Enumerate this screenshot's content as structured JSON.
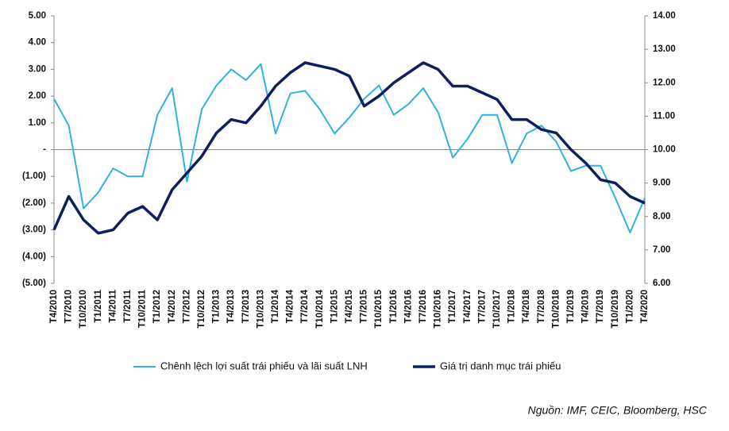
{
  "chart_data": {
    "type": "line",
    "categories": [
      "T4/2010",
      "T7/2010",
      "T10/2010",
      "T1/2011",
      "T4/2011",
      "T7/2011",
      "T10/2011",
      "T1/2012",
      "T4/2012",
      "T7/2012",
      "T10/2012",
      "T1/2013",
      "T4/2013",
      "T7/2013",
      "T10/2013",
      "T1/2014",
      "T4/2014",
      "T7/2014",
      "T10/2014",
      "T1/2015",
      "T4/2015",
      "T7/2015",
      "T10/2015",
      "T1/2016",
      "T4/2016",
      "T7/2016",
      "T10/2016",
      "T1/2017",
      "T4/2017",
      "T7/2017",
      "T10/2017",
      "T1/2018",
      "T4/2018",
      "T7/2018",
      "T10/2018",
      "T1/2019",
      "T4/2019",
      "T7/2019",
      "T10/2019",
      "T1/2020",
      "T4/2020"
    ],
    "series": [
      {
        "name": "Chênh lệch lợi suất trái phiếu và lãi suất LNH",
        "color": "#2fb1e8",
        "values": [
          1.9,
          0.9,
          -2.2,
          -1.6,
          -0.7,
          -1.0,
          -1.0,
          1.3,
          2.3,
          -1.2,
          1.5,
          2.4,
          3.0,
          2.6,
          3.2,
          0.6,
          2.1,
          2.2,
          1.5,
          0.6,
          1.2,
          1.9,
          2.4,
          1.3,
          1.7,
          2.3,
          1.4,
          -0.3,
          0.4,
          1.3,
          1.3,
          -0.5,
          0.6,
          0.9,
          0.3,
          -0.8,
          -0.6,
          -0.6,
          -1.8,
          -3.1,
          -1.8
        ]
      },
      {
        "name": "Giá trị danh mục trái phiếu",
        "color": "#0d1f5c",
        "axis": "y2",
        "values": [
          7.6,
          8.6,
          7.9,
          7.5,
          7.6,
          8.1,
          8.3,
          7.9,
          8.8,
          9.3,
          9.8,
          10.5,
          10.9,
          10.8,
          11.3,
          11.9,
          12.3,
          12.6,
          12.5,
          12.4,
          12.2,
          11.3,
          11.6,
          12.0,
          12.3,
          12.6,
          12.4,
          11.9,
          11.9,
          11.7,
          11.5,
          10.9,
          10.9,
          10.6,
          10.5,
          10.0,
          9.6,
          9.1,
          9.0,
          8.6,
          8.4
        ]
      }
    ],
    "ylim": [
      -5,
      5
    ],
    "yticks": [
      {
        "value": 5,
        "label": "5.00"
      },
      {
        "value": 4,
        "label": "4.00"
      },
      {
        "value": 3,
        "label": "3.00"
      },
      {
        "value": 2,
        "label": "2.00"
      },
      {
        "value": 1,
        "label": "1.00"
      },
      {
        "value": 0,
        "label": "-"
      },
      {
        "value": -1,
        "label": "(1.00)"
      },
      {
        "value": -2,
        "label": "(2.00)"
      },
      {
        "value": -3,
        "label": "(3.00)"
      },
      {
        "value": -4,
        "label": "(4.00)"
      },
      {
        "value": -5,
        "label": "(5.00)"
      }
    ],
    "y2lim": [
      6,
      14
    ],
    "y2ticks": [
      {
        "value": 14,
        "label": "14.00"
      },
      {
        "value": 13,
        "label": "13.00"
      },
      {
        "value": 12,
        "label": "12.00"
      },
      {
        "value": 11,
        "label": "11.00"
      },
      {
        "value": 10,
        "label": "10.00"
      },
      {
        "value": 9,
        "label": "9.00"
      },
      {
        "value": 8,
        "label": "8.00"
      },
      {
        "value": 7,
        "label": "7.00"
      },
      {
        "value": 6,
        "label": "6.00"
      }
    ],
    "source": "Nguồn: IMF, CEIC, Bloomberg, HSC"
  }
}
